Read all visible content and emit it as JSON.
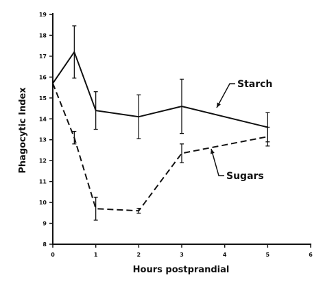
{
  "chart_data": {
    "type": "line",
    "title": "",
    "xlabel": "Hours postprandial",
    "ylabel": "Phagocytic Index",
    "xlim": [
      0,
      6
    ],
    "ylim": [
      8,
      19
    ],
    "x_ticks": [
      "0",
      "1",
      "2",
      "3",
      "4",
      "5",
      "6"
    ],
    "y_ticks": [
      "8",
      "9",
      "10",
      "11",
      "12",
      "13",
      "14",
      "15",
      "16",
      "17",
      "18",
      "19"
    ],
    "grid": false,
    "legend": "none",
    "series": [
      {
        "name": "Starch",
        "line_style": "solid",
        "color": "#111111",
        "x": [
          0,
          0.5,
          1,
          2,
          3,
          5
        ],
        "y": [
          15.7,
          17.2,
          14.4,
          14.1,
          14.6,
          13.6
        ],
        "error": [
          null,
          1.25,
          0.9,
          1.05,
          1.3,
          0.7
        ]
      },
      {
        "name": "Sugars",
        "line_style": "dashed",
        "color": "#111111",
        "x": [
          0,
          0.5,
          1,
          2,
          3,
          5
        ],
        "y": [
          15.7,
          13.1,
          9.7,
          9.6,
          12.35,
          13.15
        ],
        "error": [
          null,
          0.3,
          0.55,
          0.12,
          0.45,
          0.45
        ]
      }
    ]
  }
}
